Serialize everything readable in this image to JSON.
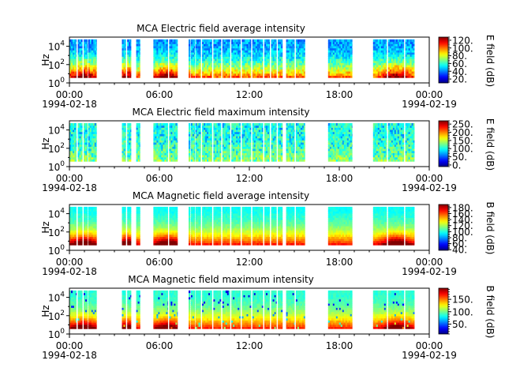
{
  "chart_data": [
    {
      "type": "heatmap",
      "title": "MCA  Electric field average intensity",
      "ylabel": "Hz",
      "colorbar_label": "E field (dB)",
      "colorbar_ticks": [
        20,
        40,
        60,
        80,
        100,
        120
      ],
      "colorbar_tick_labels": [
        "20.",
        "40.",
        "60.",
        "80.",
        "100.",
        "120."
      ],
      "zlim": [
        10,
        128
      ],
      "ylim": [
        1,
        100000
      ],
      "yscale": "log",
      "yticks": [
        "10^0",
        "10^2",
        "10^4"
      ]
    },
    {
      "type": "heatmap",
      "title": "MCA  Electric field maximum intensity",
      "ylabel": "Hz",
      "colorbar_label": "E field (dB)",
      "colorbar_ticks": [
        0,
        50,
        100,
        150,
        200,
        250
      ],
      "colorbar_tick_labels": [
        "0.",
        "50.",
        "100.",
        "150.",
        "200.",
        "250."
      ],
      "zlim": [
        -10,
        270
      ],
      "ylim": [
        1,
        100000
      ],
      "yscale": "log",
      "yticks": [
        "10^0",
        "10^2",
        "10^4"
      ]
    },
    {
      "type": "heatmap",
      "title": "MCA  Magnetic field average intensity",
      "ylabel": "Hz",
      "colorbar_label": "B field (dB)",
      "colorbar_ticks": [
        40,
        60,
        80,
        100,
        120,
        140,
        160,
        180
      ],
      "colorbar_tick_labels": [
        "40.",
        "60.",
        "80.",
        "100.",
        "120.",
        "140.",
        "160.",
        "180."
      ],
      "zlim": [
        38,
        190
      ],
      "ylim": [
        1,
        100000
      ],
      "yscale": "log",
      "yticks": [
        "10^0",
        "10^2",
        "10^4"
      ]
    },
    {
      "type": "heatmap",
      "title": "MCA  Magnetic field maximum intensity",
      "ylabel": "Hz",
      "colorbar_label": "B field (dB)",
      "colorbar_ticks": [
        50,
        100,
        150
      ],
      "colorbar_tick_labels": [
        "50.",
        "100.",
        "150."
      ],
      "zlim": [
        10,
        195
      ],
      "ylim": [
        1,
        100000
      ],
      "yscale": "log",
      "yticks": [
        "10^0",
        "10^2",
        "10^4"
      ]
    }
  ],
  "x_axis": {
    "xlim": [
      "1994-02-18T00:00",
      "1994-02-19T00:00"
    ],
    "ticks": [
      "00:00",
      "06:00",
      "12:00",
      "18:00",
      "00:00"
    ],
    "date_labels": [
      "1994-02-18",
      "1994-02-19"
    ]
  },
  "data_intervals_hours": [
    [
      0.0,
      0.45
    ],
    [
      0.55,
      0.85
    ],
    [
      0.95,
      1.2
    ],
    [
      1.25,
      1.8
    ],
    [
      3.5,
      3.75
    ],
    [
      3.85,
      4.1
    ],
    [
      4.45,
      4.7
    ],
    [
      5.6,
      6.55
    ],
    [
      6.65,
      7.2
    ],
    [
      7.95,
      8.05
    ],
    [
      8.1,
      8.35
    ],
    [
      8.4,
      8.75
    ],
    [
      8.85,
      9.5
    ],
    [
      9.6,
      10.1
    ],
    [
      10.2,
      10.7
    ],
    [
      10.8,
      11.4
    ],
    [
      11.5,
      12.1
    ],
    [
      12.2,
      12.9
    ],
    [
      13.0,
      13.35
    ],
    [
      13.45,
      13.8
    ],
    [
      13.9,
      14.2
    ],
    [
      14.45,
      15.0
    ],
    [
      15.1,
      15.7
    ],
    [
      17.25,
      18.85
    ],
    [
      20.25,
      21.15
    ],
    [
      21.25,
      22.3
    ],
    [
      22.4,
      23.0
    ]
  ],
  "colors": {
    "background": "#ffffff",
    "axis": "#000000",
    "colormap": "jet"
  }
}
